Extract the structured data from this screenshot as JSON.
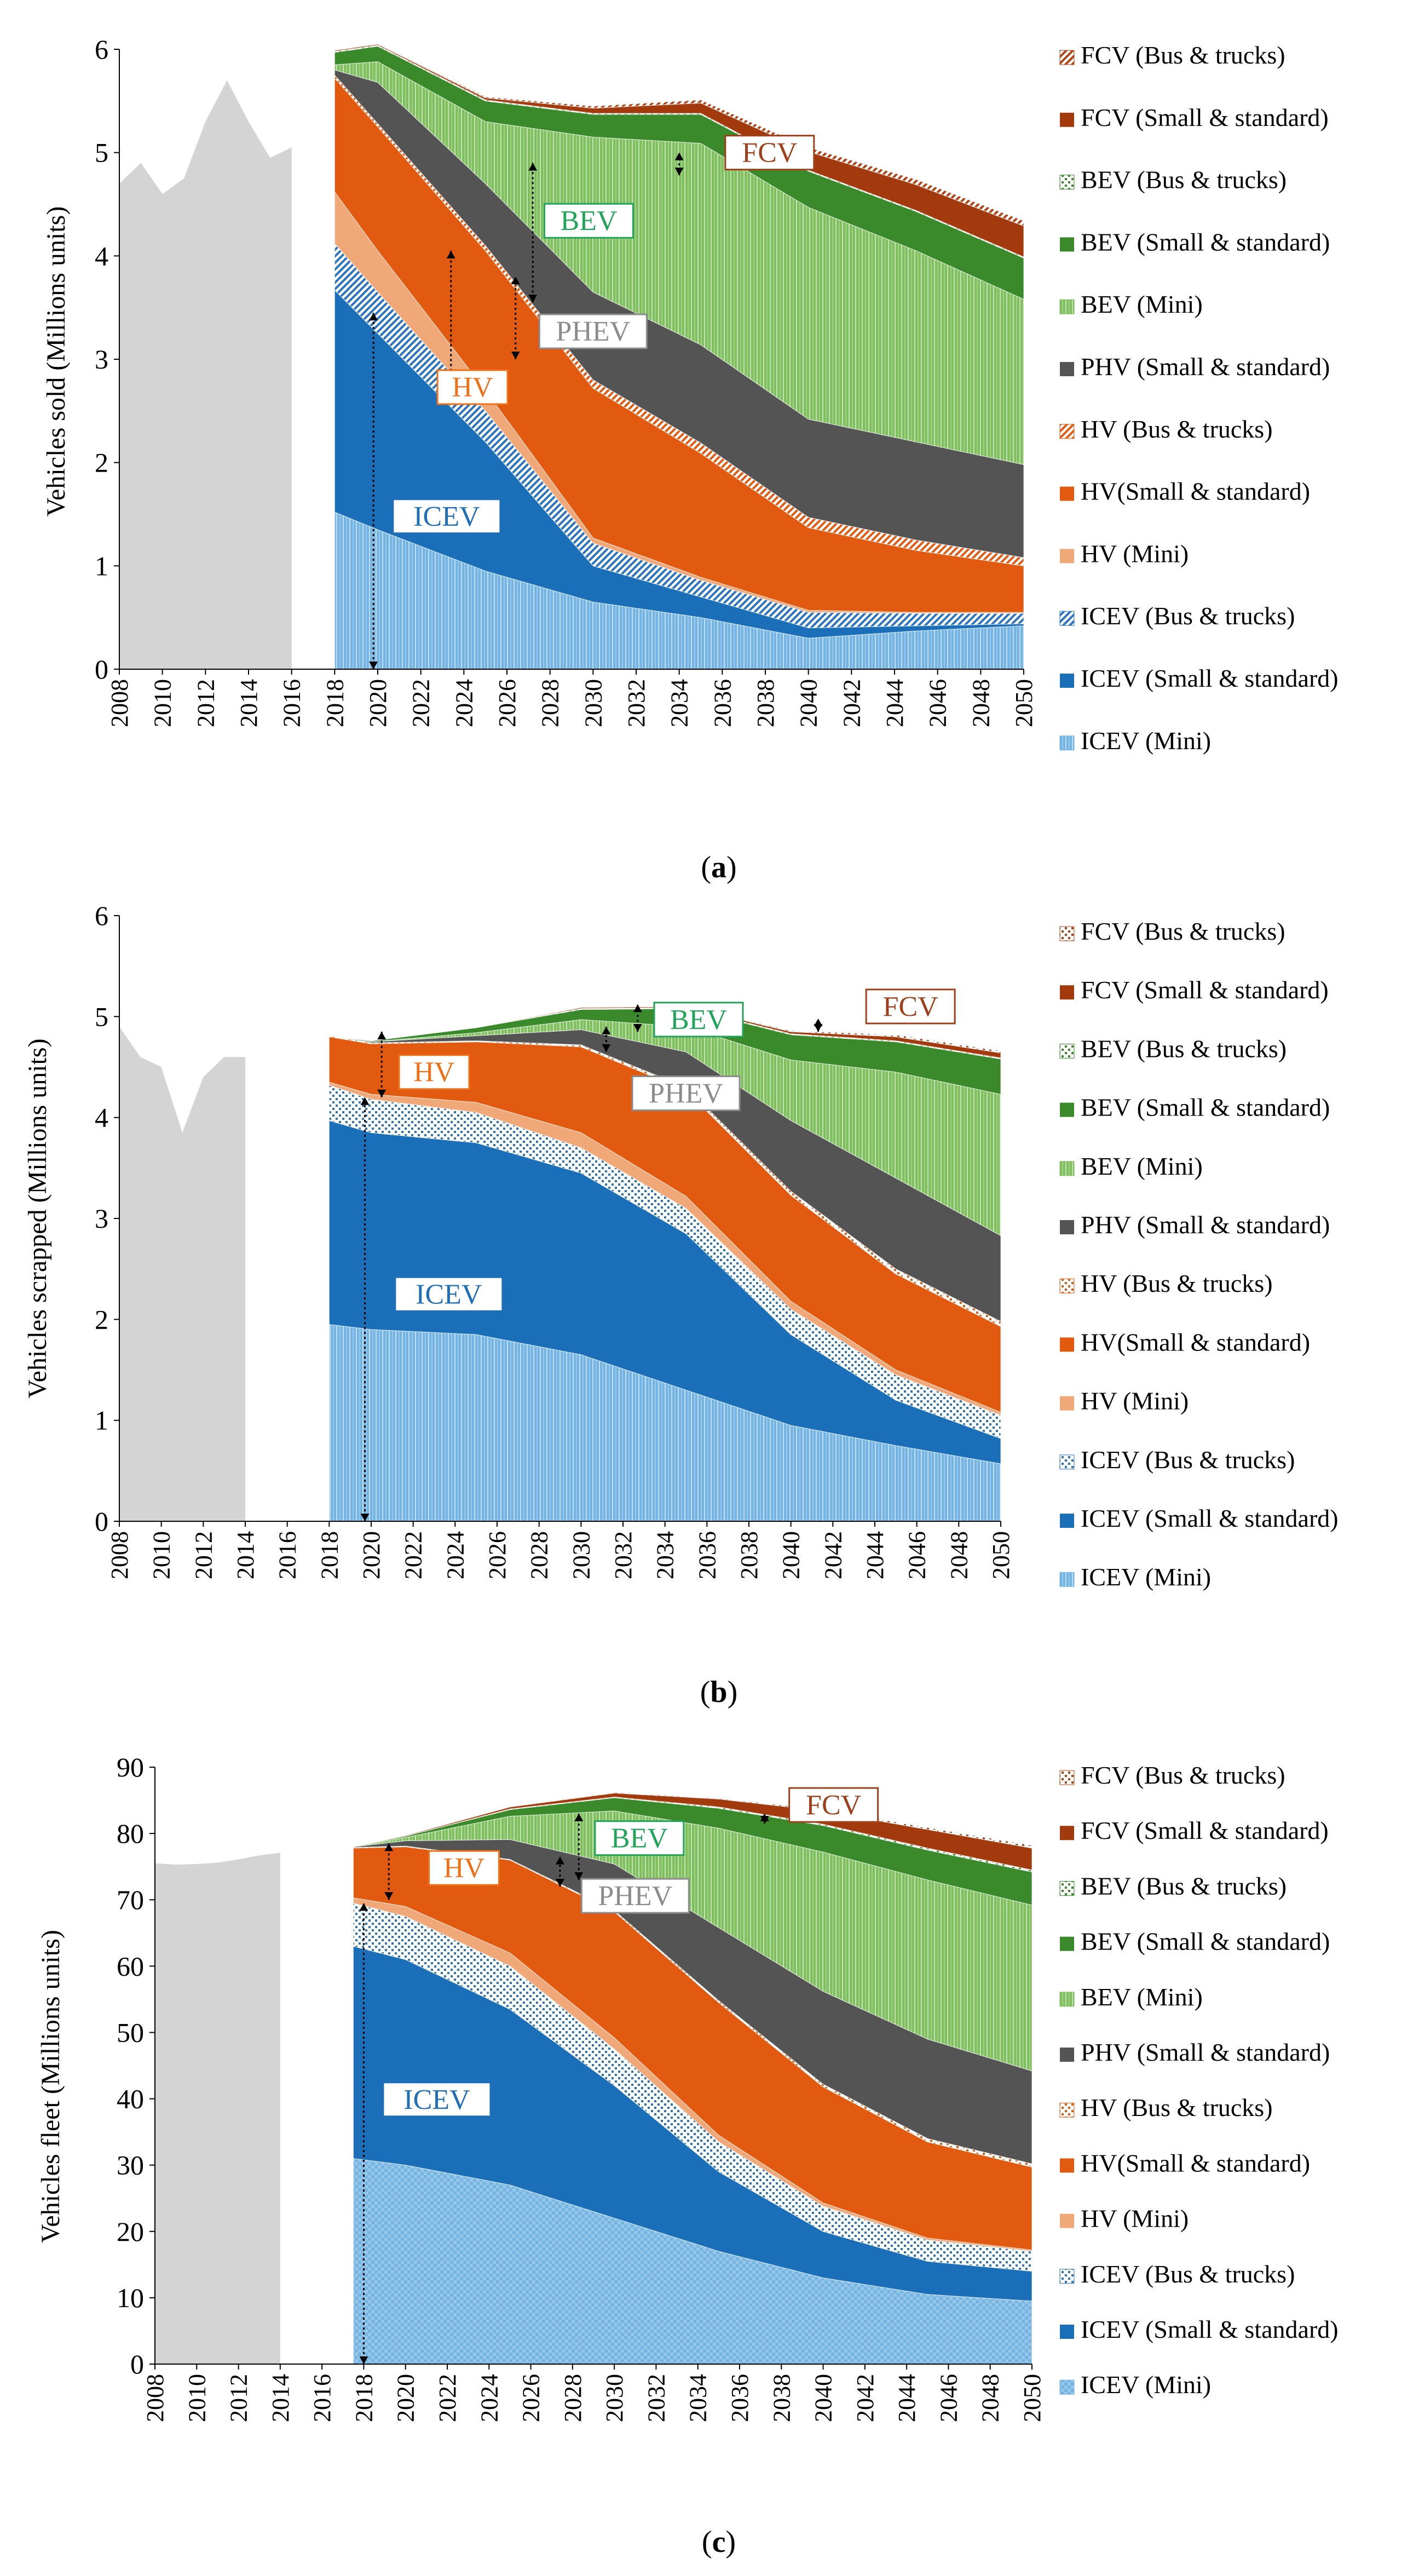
{
  "colors": {
    "history": "#d4d4d4",
    "icev_mini": "#73b4e2",
    "icev_ss": "#1a6fb8",
    "icev_bus": "#2a73be",
    "hv_mini": "#f1a878",
    "hv_ss": "#e25a10",
    "hv_bus": "#e25a10",
    "phv_ss": "#545454",
    "bev_mini": "#7fbf5e",
    "bev_ss": "#3a8a2c",
    "bev_bus": "#3a8a2c",
    "fcv_ss": "#a33a0e",
    "fcv_bus": "#b04316",
    "label_icev": "#1f6eb8",
    "label_hv": "#f07018",
    "label_phev": "#8c8c8c",
    "label_bev": "#21a55a",
    "label_fcv": "#a0401a"
  },
  "chart_data": [
    {
      "id": "a",
      "type": "area",
      "caption_letter": "a",
      "ylabel": "Vehicles sold (Millions units)",
      "xlabel": "",
      "ylim": [
        0,
        6
      ],
      "yticks": [
        "0",
        "1",
        "2",
        "3",
        "4",
        "5",
        "6"
      ],
      "x_range": [
        2008,
        2050
      ],
      "xticks": [
        "2008",
        "2010",
        "2012",
        "2014",
        "2016",
        "2018",
        "2020",
        "2022",
        "2024",
        "2026",
        "2028",
        "2030",
        "2032",
        "2034",
        "2036",
        "2038",
        "2040",
        "2042",
        "2044",
        "2046",
        "2048",
        "2050"
      ],
      "history": {
        "x": [
          2008,
          2009,
          2010,
          2011,
          2012,
          2013,
          2014,
          2015,
          2016
        ],
        "values": [
          4.7,
          4.9,
          4.6,
          4.75,
          5.3,
          5.7,
          5.3,
          4.95,
          5.05
        ]
      },
      "x": [
        2018,
        2020,
        2025,
        2030,
        2035,
        2040,
        2045,
        2050
      ],
      "series": [
        {
          "key": "icev_mini",
          "name": "ICEV (Mini)",
          "pattern": "vlines",
          "values": [
            1.52,
            1.35,
            0.95,
            0.65,
            0.5,
            0.3,
            0.37,
            0.42
          ]
        },
        {
          "key": "icev_ss",
          "name": "ICEV  (Small & standard)",
          "pattern": "solid",
          "values": [
            2.15,
            1.9,
            1.25,
            0.35,
            0.2,
            0.1,
            0.05,
            0.02
          ]
        },
        {
          "key": "icev_bus",
          "name": "ICEV (Bus & trucks)",
          "pattern": "diag",
          "values": [
            0.45,
            0.4,
            0.3,
            0.22,
            0.16,
            0.15,
            0.12,
            0.1
          ]
        },
        {
          "key": "hv_mini",
          "name": "HV (Mini)",
          "pattern": "solid",
          "values": [
            0.5,
            0.4,
            0.2,
            0.05,
            0.03,
            0.02,
            0.01,
            0.01
          ]
        },
        {
          "key": "hv_ss",
          "name": "HV(Small & standard)",
          "pattern": "solid",
          "values": [
            1.1,
            1.2,
            1.35,
            1.45,
            1.2,
            0.8,
            0.6,
            0.45
          ]
        },
        {
          "key": "hv_bus",
          "name": "HV (Bus & trucks)",
          "pattern": "diag",
          "values": [
            0.03,
            0.03,
            0.05,
            0.08,
            0.1,
            0.1,
            0.1,
            0.08
          ]
        },
        {
          "key": "phv_ss",
          "name": "PHV (Small & standard)",
          "pattern": "solid",
          "values": [
            0.05,
            0.4,
            0.6,
            0.85,
            0.95,
            0.95,
            0.95,
            0.9
          ]
        },
        {
          "key": "bev_mini",
          "name": "BEV (Mini)",
          "pattern": "vlines",
          "values": [
            0.05,
            0.2,
            0.6,
            1.5,
            1.95,
            2.05,
            1.85,
            1.6
          ]
        },
        {
          "key": "bev_ss",
          "name": "BEV (Small & standard)",
          "pattern": "solid",
          "values": [
            0.12,
            0.15,
            0.2,
            0.22,
            0.28,
            0.35,
            0.38,
            0.4
          ]
        },
        {
          "key": "bev_bus",
          "name": "BEV (Bus & trucks)",
          "pattern": "dots",
          "values": [
            0.01,
            0.01,
            0.01,
            0.01,
            0.01,
            0.01,
            0.01,
            0.01
          ]
        },
        {
          "key": "fcv_ss",
          "name": "FCV (Small & standard)",
          "pattern": "solid",
          "values": [
            0.01,
            0.01,
            0.02,
            0.05,
            0.1,
            0.18,
            0.25,
            0.3
          ]
        },
        {
          "key": "fcv_bus",
          "name": "FCV (Bus & trucks)",
          "pattern": "diag",
          "values": [
            0.0,
            0.0,
            0.01,
            0.02,
            0.03,
            0.04,
            0.05,
            0.05
          ]
        }
      ],
      "annotations": [
        {
          "text": "FCV",
          "color": "label_fcv",
          "box_x": 2038.2,
          "box_y": 5.0
        },
        {
          "text": "BEV",
          "color": "label_bev",
          "box_x": 2029.8,
          "box_y": 4.34
        },
        {
          "text": "PHEV",
          "color": "label_phev",
          "box_x": 2030.0,
          "box_y": 3.27
        },
        {
          "text": "HV",
          "color": "label_hv",
          "box_x": 2024.4,
          "box_y": 2.73
        },
        {
          "text": "ICEV",
          "color": "label_icev",
          "box_x": 2023.2,
          "box_y": 1.48
        }
      ],
      "arrows": [
        {
          "x": 2034,
          "y1": 4.78,
          "y2": 5.0
        },
        {
          "x": 2027.2,
          "y1": 3.55,
          "y2": 4.9
        },
        {
          "x": 2026.4,
          "y1": 3.0,
          "y2": 3.8
        },
        {
          "x": 2023.4,
          "y1": 2.6,
          "y2": 4.05
        },
        {
          "x": 2019.8,
          "y1": 0.0,
          "y2": 3.45
        }
      ]
    },
    {
      "id": "b",
      "type": "area",
      "caption_letter": "b",
      "ylabel": "Vehicles scrapped (Millions units)",
      "xlabel": "",
      "ylim": [
        0,
        6
      ],
      "yticks": [
        "0",
        "1",
        "2",
        "3",
        "4",
        "5",
        "6"
      ],
      "x_range": [
        2008,
        2050
      ],
      "xticks": [
        "2008",
        "2010",
        "2012",
        "2014",
        "2016",
        "2018",
        "2020",
        "2022",
        "2024",
        "2026",
        "2028",
        "2030",
        "2032",
        "2034",
        "2036",
        "2038",
        "2040",
        "2042",
        "2044",
        "2046",
        "2048",
        "2050"
      ],
      "history": {
        "x": [
          2008,
          2009,
          2010,
          2011,
          2012,
          2013,
          2014
        ],
        "values": [
          4.9,
          4.6,
          4.5,
          3.85,
          4.4,
          4.6,
          4.6
        ]
      },
      "x": [
        2018,
        2020,
        2025,
        2030,
        2035,
        2040,
        2045,
        2050
      ],
      "series": [
        {
          "key": "icev_mini",
          "name": "ICEV (Mini)",
          "pattern": "vlines",
          "values": [
            1.95,
            1.9,
            1.85,
            1.65,
            1.3,
            0.95,
            0.75,
            0.57
          ]
        },
        {
          "key": "icev_ss",
          "name": "ICEV  (Small & standard)",
          "pattern": "solid",
          "values": [
            2.02,
            1.95,
            1.9,
            1.8,
            1.55,
            0.9,
            0.45,
            0.25
          ]
        },
        {
          "key": "icev_bus",
          "name": "ICEV (Bus & trucks)",
          "pattern": "dots",
          "values": [
            0.35,
            0.33,
            0.3,
            0.25,
            0.25,
            0.25,
            0.25,
            0.23
          ]
        },
        {
          "key": "hv_mini",
          "name": "HV (Mini)",
          "pattern": "solid",
          "values": [
            0.03,
            0.05,
            0.1,
            0.15,
            0.12,
            0.08,
            0.05,
            0.03
          ]
        },
        {
          "key": "hv_ss",
          "name": "HV(Small & standard)",
          "pattern": "solid",
          "values": [
            0.45,
            0.5,
            0.6,
            0.85,
            1.05,
            1.05,
            0.95,
            0.85
          ]
        },
        {
          "key": "hv_bus",
          "name": "HV (Bus & trucks)",
          "pattern": "dots",
          "values": [
            0.01,
            0.01,
            0.01,
            0.02,
            0.03,
            0.04,
            0.05,
            0.05
          ]
        },
        {
          "key": "phv_ss",
          "name": "PHV (Small & standard)",
          "pattern": "solid",
          "values": [
            0.0,
            0.01,
            0.05,
            0.15,
            0.35,
            0.7,
            0.9,
            0.85
          ]
        },
        {
          "key": "bev_mini",
          "name": "BEV (Mini)",
          "pattern": "vlines",
          "values": [
            0.0,
            0.0,
            0.03,
            0.1,
            0.25,
            0.6,
            1.05,
            1.4
          ]
        },
        {
          "key": "bev_ss",
          "name": "BEV (Small & standard)",
          "pattern": "solid",
          "values": [
            0.0,
            0.01,
            0.05,
            0.1,
            0.18,
            0.25,
            0.3,
            0.35
          ]
        },
        {
          "key": "bev_bus",
          "name": "BEV (Bus & trucks)",
          "pattern": "dots",
          "values": [
            0.0,
            0.0,
            0.0,
            0.01,
            0.01,
            0.01,
            0.01,
            0.01
          ]
        },
        {
          "key": "fcv_ss",
          "name": "FCV (Small & standard)",
          "pattern": "solid",
          "values": [
            0.0,
            0.0,
            0.0,
            0.01,
            0.01,
            0.02,
            0.04,
            0.05
          ]
        },
        {
          "key": "fcv_bus",
          "name": "FCV (Bus & trucks)",
          "pattern": "dots",
          "values": [
            0.0,
            0.0,
            0.0,
            0.0,
            0.0,
            0.01,
            0.02,
            0.02
          ]
        }
      ],
      "annotations": [
        {
          "text": "HV",
          "color": "label_hv",
          "box_x": 2023.0,
          "box_y": 4.45
        },
        {
          "text": "PHEV",
          "color": "label_phev",
          "box_x": 2035.0,
          "box_y": 4.24
        },
        {
          "text": "BEV",
          "color": "label_bev",
          "box_x": 2035.6,
          "box_y": 4.97
        },
        {
          "text": "FCV",
          "color": "label_fcv",
          "box_x": 2045.7,
          "box_y": 5.1
        },
        {
          "text": "ICEV",
          "color": "label_icev",
          "box_x": 2023.7,
          "box_y": 2.25
        }
      ],
      "arrows": [
        {
          "x": 2020.5,
          "y1": 4.2,
          "y2": 4.85
        },
        {
          "x": 2031.2,
          "y1": 4.65,
          "y2": 4.9
        },
        {
          "x": 2032.7,
          "y1": 4.85,
          "y2": 5.12
        },
        {
          "x": 2041.3,
          "y1": 4.85,
          "y2": 4.98
        },
        {
          "x": 2019.7,
          "y1": 0.0,
          "y2": 4.2
        }
      ]
    },
    {
      "id": "c",
      "type": "area",
      "caption_letter": "c",
      "ylabel": "Vehicles fleet (Millions units)",
      "xlabel": "",
      "ylim": [
        0,
        90
      ],
      "yticks": [
        "0",
        "10",
        "20",
        "30",
        "40",
        "50",
        "60",
        "70",
        "80",
        "90"
      ],
      "x_range": [
        2008,
        2050
      ],
      "xticks": [
        "2008",
        "2010",
        "2012",
        "2014",
        "2016",
        "2018",
        "2020",
        "2022",
        "2024",
        "2026",
        "2028",
        "2030",
        "2032",
        "2034",
        "2036",
        "2038",
        "2040",
        "2042",
        "2044",
        "2046",
        "2048",
        "2050"
      ],
      "history": {
        "x": [
          2008,
          2009,
          2010,
          2011,
          2012,
          2013,
          2014
        ],
        "values": [
          75.5,
          75.3,
          75.4,
          75.6,
          76.1,
          76.7,
          77.1
        ]
      },
      "x": [
        2017.5,
        2020,
        2025,
        2030,
        2035,
        2040,
        2045,
        2050
      ],
      "series": [
        {
          "key": "icev_mini",
          "name": "ICEV (Mini)",
          "pattern": "checker",
          "values": [
            31,
            30,
            27,
            22,
            17,
            13,
            10.5,
            9.5
          ]
        },
        {
          "key": "icev_ss",
          "name": "ICEV  (Small & standard)",
          "pattern": "solid",
          "values": [
            32,
            31,
            26.5,
            20,
            12,
            7,
            5,
            4.5
          ]
        },
        {
          "key": "icev_bus",
          "name": "ICEV (Bus & trucks)",
          "pattern": "dots",
          "values": [
            6.5,
            6.5,
            6.5,
            5.5,
            4.5,
            3.8,
            3.2,
            3.0
          ]
        },
        {
          "key": "hv_mini",
          "name": "HV (Mini)",
          "pattern": "solid",
          "values": [
            0.8,
            1.5,
            2.0,
            1.7,
            1.0,
            0.5,
            0.3,
            0.2
          ]
        },
        {
          "key": "hv_ss",
          "name": "HV(Small & standard)",
          "pattern": "solid",
          "values": [
            7.5,
            9,
            14,
            19,
            20,
            17.5,
            14.5,
            12.5
          ]
        },
        {
          "key": "hv_bus",
          "name": "HV (Bus & trucks)",
          "pattern": "dots",
          "values": [
            0.1,
            0.1,
            0.1,
            0.2,
            0.3,
            0.4,
            0.5,
            0.5
          ]
        },
        {
          "key": "phv_ss",
          "name": "PHV (Small & standard)",
          "pattern": "solid",
          "values": [
            0.1,
            0.8,
            3,
            7,
            11,
            14,
            15,
            14
          ]
        },
        {
          "key": "bev_mini",
          "name": "BEV (Mini)",
          "pattern": "vlines",
          "values": [
            0.0,
            0.5,
            3.5,
            8,
            15,
            21,
            24,
            25
          ]
        },
        {
          "key": "bev_ss",
          "name": "BEV (Small & standard)",
          "pattern": "solid",
          "values": [
            0.0,
            0.2,
            1.0,
            2.0,
            3.0,
            4.0,
            4.5,
            5.0
          ]
        },
        {
          "key": "bev_bus",
          "name": "BEV (Bus & trucks)",
          "pattern": "dots",
          "values": [
            0.0,
            0.0,
            0.1,
            0.1,
            0.2,
            0.2,
            0.3,
            0.3
          ]
        },
        {
          "key": "fcv_ss",
          "name": "FCV (Small & standard)",
          "pattern": "solid",
          "values": [
            0.0,
            0.1,
            0.3,
            0.6,
            1.2,
            2.0,
            2.8,
            3.3
          ]
        },
        {
          "key": "fcv_bus",
          "name": "FCV (Bus & trucks)",
          "pattern": "dots",
          "values": [
            0.0,
            0.0,
            0.0,
            0.1,
            0.1,
            0.2,
            0.3,
            0.4
          ]
        }
      ],
      "annotations": [
        {
          "text": "FCV",
          "color": "label_fcv",
          "box_x": 2040.5,
          "box_y": 84.3
        },
        {
          "text": "BEV",
          "color": "label_bev",
          "box_x": 2031.2,
          "box_y": 79.3
        },
        {
          "text": "PHEV",
          "color": "label_phev",
          "box_x": 2031.0,
          "box_y": 70.6
        },
        {
          "text": "HV",
          "color": "label_hv",
          "box_x": 2022.8,
          "box_y": 74.8
        },
        {
          "text": "ICEV",
          "color": "label_icev",
          "box_x": 2021.5,
          "box_y": 39.9
        }
      ],
      "arrows": [
        {
          "x": 2037.2,
          "y1": 81.5,
          "y2": 83.0
        },
        {
          "x": 2028.3,
          "y1": 73.0,
          "y2": 83.0
        },
        {
          "x": 2027.4,
          "y1": 72.0,
          "y2": 76.5
        },
        {
          "x": 2019.2,
          "y1": 70.0,
          "y2": 78.5
        },
        {
          "x": 2018.0,
          "y1": 0.0,
          "y2": 69.5
        }
      ]
    }
  ]
}
